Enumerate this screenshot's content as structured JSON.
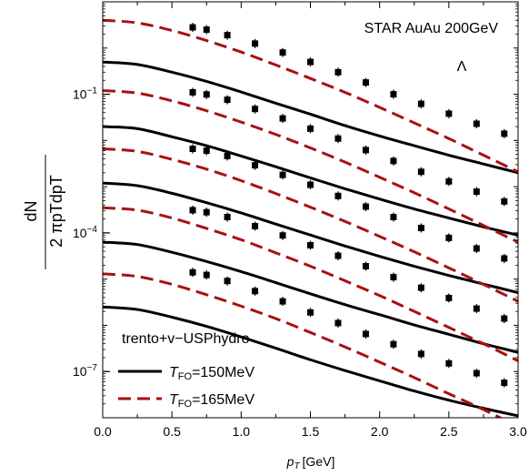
{
  "chart_data": {
    "type": "line",
    "xlabel": "p_T [GeV]",
    "xlabel_var": "p",
    "xlabel_sub": "T",
    "xlabel_unit": "[GeV]",
    "ylabel_numerator": "dN",
    "ylabel_denominator": "2 πpTdpT",
    "xlim": [
      0.0,
      3.0
    ],
    "ylim": [
      1e-08,
      10
    ],
    "yscale": "log",
    "grid": false,
    "x_ticks": [
      "0.0",
      "0.5",
      "1.0",
      "1.5",
      "2.0",
      "2.5",
      "3.0"
    ],
    "x_tick_values": [
      0,
      0.5,
      1.0,
      1.5,
      2.0,
      2.5,
      3.0
    ],
    "y_ticks": [
      {
        "value": 0.1,
        "base": "10",
        "exp": "−1"
      },
      {
        "value": 0.0001,
        "base": "10",
        "exp": "−4"
      },
      {
        "value": 1e-07,
        "base": "10",
        "exp": "−7"
      }
    ],
    "annotations": [
      "STAR AuAu 200GeV",
      "Λ"
    ],
    "legend": {
      "position": "bottom-left",
      "title": "trento+v−USPhydro",
      "entries": [
        {
          "label_var": "T",
          "label_sub": "FO",
          "label_rest": "=150MeV",
          "style": "solid",
          "color": "#000000"
        },
        {
          "label_var": "T",
          "label_sub": "FO",
          "label_rest": "=165MeV",
          "style": "dashed",
          "color": "#aa1111"
        }
      ]
    },
    "curve_x": [
      0,
      0.25,
      0.5,
      0.75,
      1.0,
      1.25,
      1.5,
      1.75,
      2.0,
      2.25,
      2.5,
      2.75,
      3.0
    ],
    "series": [
      {
        "style": "solid",
        "color": "#000000",
        "values": [
          0.5,
          0.44,
          0.3,
          0.19,
          0.112,
          0.064,
          0.037,
          0.021,
          0.0125,
          0.0077,
          0.0048,
          0.0031,
          0.002
        ]
      },
      {
        "style": "solid",
        "color": "#000000",
        "values": [
          0.02,
          0.018,
          0.012,
          0.0077,
          0.0046,
          0.0027,
          0.00155,
          0.0009,
          0.00054,
          0.00033,
          0.00021,
          0.000135,
          8.9e-05
        ]
      },
      {
        "style": "solid",
        "color": "#000000",
        "values": [
          0.0012,
          0.00105,
          0.00072,
          0.00045,
          0.00027,
          0.000155,
          9e-05,
          5.2e-05,
          3.1e-05,
          1.9e-05,
          1.2e-05,
          7.8e-06,
          5.1e-06
        ]
      },
      {
        "style": "solid",
        "color": "#000000",
        "values": [
          6.3e-05,
          5.6e-05,
          3.8e-05,
          2.4e-05,
          1.45e-05,
          8.4e-06,
          4.8e-06,
          2.8e-06,
          1.7e-06,
          1.02e-06,
          6.4e-07,
          4e-07,
          2.6e-07
        ]
      },
      {
        "style": "solid",
        "color": "#000000",
        "values": [
          2.5e-06,
          2.2e-06,
          1.5e-06,
          9.5e-07,
          5.6e-07,
          3.2e-07,
          1.8e-07,
          1.05e-07,
          6.3e-08,
          3.8e-08,
          2.4e-08,
          1.6e-08,
          1.1e-08
        ]
      },
      {
        "style": "dashed",
        "color": "#aa1111",
        "values": [
          4.0,
          3.5,
          2.4,
          1.45,
          0.82,
          0.43,
          0.22,
          0.11,
          0.052,
          0.024,
          0.011,
          0.0048,
          0.0021
        ]
      },
      {
        "style": "dashed",
        "color": "#aa1111",
        "values": [
          0.12,
          0.106,
          0.072,
          0.044,
          0.025,
          0.0135,
          0.0069,
          0.0034,
          0.0016,
          0.00074,
          0.00033,
          0.000145,
          6.3e-05
        ]
      },
      {
        "style": "dashed",
        "color": "#aa1111",
        "values": [
          0.0066,
          0.0058,
          0.0039,
          0.0024,
          0.00135,
          0.00071,
          0.00036,
          0.000177,
          8.4e-05,
          3.9e-05,
          1.75e-05,
          7.7e-06,
          3.3e-06
        ]
      },
      {
        "style": "dashed",
        "color": "#aa1111",
        "values": [
          0.00035,
          0.00031,
          0.00021,
          0.000125,
          7.1e-05,
          3.7e-05,
          1.9e-05,
          9.2e-06,
          4.4e-06,
          2e-06,
          9e-07,
          4e-07,
          1.7e-07
        ]
      },
      {
        "style": "dashed",
        "color": "#aa1111",
        "values": [
          1.3e-05,
          1.14e-05,
          7.7e-06,
          4.6e-06,
          2.6e-06,
          1.4e-06,
          7e-07,
          3.4e-07,
          1.6e-07,
          7.4e-08,
          3.3e-08,
          1.5e-08,
          6.4e-09
        ]
      }
    ],
    "data_x": [
      0.65,
      0.75,
      0.9,
      1.1,
      1.3,
      1.5,
      1.7,
      1.9,
      2.1,
      2.3,
      2.5,
      2.7,
      2.9
    ],
    "data_sets": [
      {
        "values": [
          2.8,
          2.5,
          1.9,
          1.25,
          0.8,
          0.5,
          0.3,
          0.18,
          0.1,
          0.062,
          0.038,
          0.023,
          0.014
        ]
      },
      {
        "values": [
          0.11,
          0.099,
          0.076,
          0.048,
          0.03,
          0.018,
          0.011,
          0.0062,
          0.0036,
          0.0021,
          0.0013,
          0.00078,
          0.00048
        ]
      },
      {
        "values": [
          0.0066,
          0.006,
          0.0046,
          0.0029,
          0.0018,
          0.0011,
          0.00063,
          0.00037,
          0.00022,
          0.000128,
          7.8e-05,
          4.6e-05,
          2.8e-05
        ]
      },
      {
        "values": [
          0.00031,
          0.00028,
          0.00022,
          0.00014,
          8.8e-05,
          5.4e-05,
          3.2e-05,
          1.9e-05,
          1.1e-05,
          6.5e-06,
          3.9e-06,
          2.3e-06,
          1.4e-06
        ]
      },
      {
        "values": [
          1.4e-05,
          1.23e-05,
          9.1e-06,
          5.5e-06,
          3.3e-06,
          1.9e-06,
          1.12e-06,
          6.5e-07,
          3.9e-07,
          2.4e-07,
          1.5e-07,
          9.2e-08,
          5.7e-08
        ]
      }
    ]
  }
}
